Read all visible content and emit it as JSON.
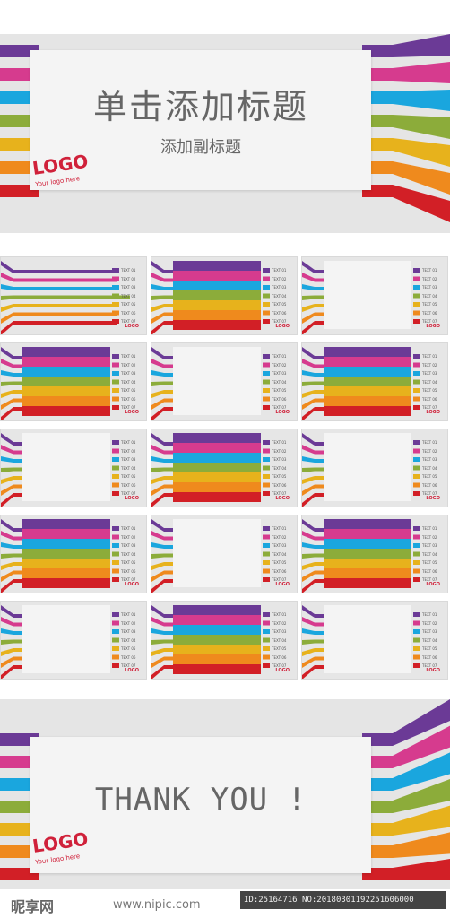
{
  "colors": [
    "#6b3a96",
    "#d63b8e",
    "#1aa6de",
    "#8cac3a",
    "#e7b21c",
    "#ef8a1d",
    "#d21f26"
  ],
  "cover": {
    "title": "单击添加标题",
    "subtitle": "添加副标题",
    "logo": "LOGO",
    "logo_sub": "Your logo here"
  },
  "thumbs": {
    "labels": [
      "TEXT 01",
      "TEXT 02",
      "TEXT 03",
      "TEXT 04",
      "TEXT 05",
      "TEXT 06",
      "TEXT 07"
    ],
    "logo": "LOGO",
    "layouts": [
      "lines",
      "bars",
      "box",
      "bars",
      "box",
      "bars",
      "box",
      "bars",
      "box",
      "bars",
      "box",
      "bars",
      "box",
      "bars",
      "box"
    ]
  },
  "end": {
    "title": "THANK  YOU  !",
    "logo": "LOGO",
    "logo_sub": "Your logo here"
  },
  "watermark": {
    "brand": "昵享网",
    "url": "www.nipic.com",
    "id": "ID:25164716 NO:20180301192251606000"
  }
}
